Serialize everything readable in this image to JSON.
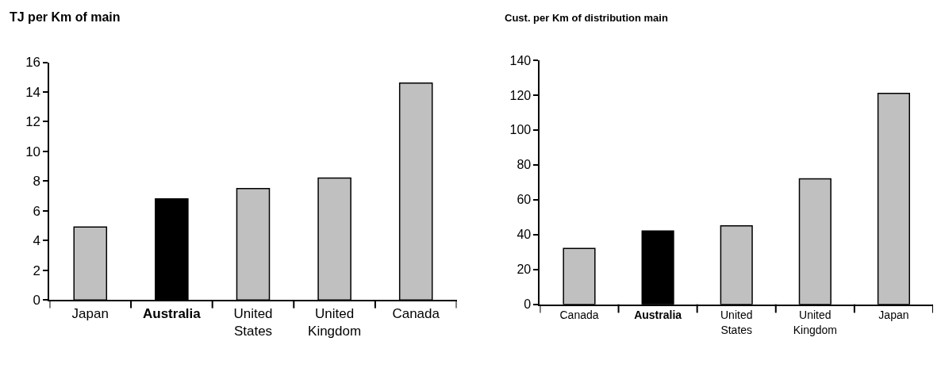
{
  "chart_data": [
    {
      "type": "bar",
      "title": "TJ per Km of main",
      "categories": [
        "Japan",
        "Australia",
        "United States",
        "United Kingdom",
        "Canada"
      ],
      "values": [
        4.9,
        6.8,
        7.5,
        8.2,
        14.6
      ],
      "colors": [
        "#c0c0c0",
        "#000000",
        "#c0c0c0",
        "#c0c0c0",
        "#c0c0c0"
      ],
      "ylim": [
        0,
        16
      ],
      "yticks": [
        0,
        2,
        4,
        6,
        8,
        10,
        12,
        14,
        16
      ]
    },
    {
      "type": "bar",
      "title": "Cust. per Km of distribution main",
      "categories": [
        "Canada",
        "Australia",
        "United States",
        "United Kingdom",
        "Japan"
      ],
      "values": [
        32,
        42,
        45,
        72,
        121
      ],
      "colors": [
        "#c0c0c0",
        "#000000",
        "#c0c0c0",
        "#c0c0c0",
        "#c0c0c0"
      ],
      "ylim": [
        0,
        140
      ],
      "yticks": [
        0,
        20,
        40,
        60,
        80,
        100,
        120,
        140
      ]
    }
  ]
}
